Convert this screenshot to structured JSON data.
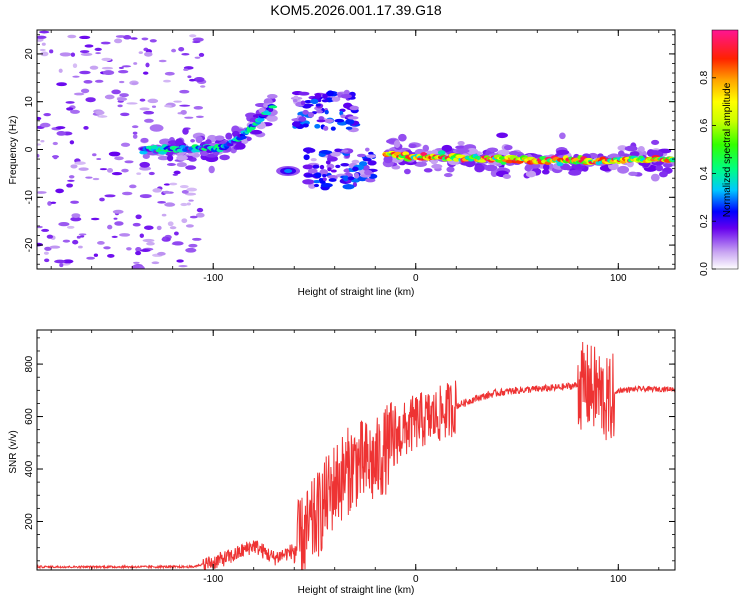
{
  "figure_title": "KOM5.2026.001.17.39.G18",
  "chart_data": [
    {
      "type": "heatmap",
      "title": "KOM5.2026.001.17.39.G18",
      "xlabel": "Height of straight line (km)",
      "ylabel": "Frequency (Hz)",
      "xlim": [
        -187,
        128
      ],
      "ylim": [
        -25,
        25
      ],
      "x_ticks": [
        -100,
        0,
        100
      ],
      "y_ticks": [
        -20,
        -10,
        0,
        10,
        20
      ],
      "x_tick_labels": [
        "-100",
        "0",
        "100"
      ],
      "y_tick_labels": [
        "-20",
        "-10",
        "0",
        "10",
        "20"
      ],
      "colorbar": {
        "label": "Normalized spectral amplitude",
        "range": [
          0,
          1
        ],
        "ticks": [
          0.0,
          0.2,
          0.4,
          0.6,
          0.8
        ],
        "tick_labels": [
          "0.0",
          "0.2",
          "0.4",
          "0.6",
          "0.8"
        ]
      },
      "features": [
        {
          "name": "scattered noise",
          "x_range": [
            -187,
            -120
          ],
          "freq_range": [
            -25,
            25
          ],
          "amplitude": 0.08
        },
        {
          "name": "ascending track",
          "points": [
            [
              -135,
              0
            ],
            [
              -110,
              0
            ],
            [
              -95,
              0.5
            ],
            [
              -85,
              3
            ],
            [
              -78,
              6
            ],
            [
              -70,
              9
            ]
          ],
          "peak_amplitude": 0.3
        },
        {
          "name": "upper cluster",
          "x_range": [
            -60,
            -30
          ],
          "freq_range": [
            4,
            12
          ],
          "amplitude": 0.15
        },
        {
          "name": "lower blob",
          "x": -63,
          "freq": -4.5,
          "amplitude": 0.3
        },
        {
          "name": "lower cluster",
          "x_range": [
            -55,
            -20
          ],
          "freq_range": [
            -8,
            0
          ],
          "amplitude": 0.15
        },
        {
          "name": "dominant line",
          "points": [
            [
              -15,
              -1
            ],
            [
              0,
              -1.5
            ],
            [
              40,
              -2
            ],
            [
              80,
              -2.5
            ],
            [
              128,
              -2
            ]
          ],
          "peak_amplitude": 0.97
        }
      ]
    },
    {
      "type": "line",
      "xlabel": "Height of straight line (km)",
      "ylabel": "SNR (v/v)",
      "xlim": [
        -187,
        128
      ],
      "ylim": [
        15,
        930
      ],
      "x_ticks": [
        -100,
        0,
        100
      ],
      "y_ticks": [
        200,
        400,
        600,
        800
      ],
      "x_tick_labels": [
        "-100",
        "0",
        "100"
      ],
      "y_tick_labels": [
        "200",
        "400",
        "600",
        "800"
      ],
      "color": "#ee3333",
      "series": [
        {
          "name": "SNR",
          "x": [
            -187,
            -110,
            -100,
            -90,
            -80,
            -70,
            -60,
            -50,
            -40,
            -30,
            -20,
            -10,
            0,
            10,
            20,
            30,
            40,
            50,
            60,
            70,
            80,
            90,
            95,
            100,
            110,
            128
          ],
          "y": [
            25,
            25,
            45,
            70,
            110,
            60,
            90,
            200,
            340,
            420,
            420,
            520,
            580,
            600,
            640,
            670,
            690,
            700,
            705,
            710,
            720,
            700,
            650,
            700,
            705,
            705
          ]
        }
      ]
    }
  ]
}
